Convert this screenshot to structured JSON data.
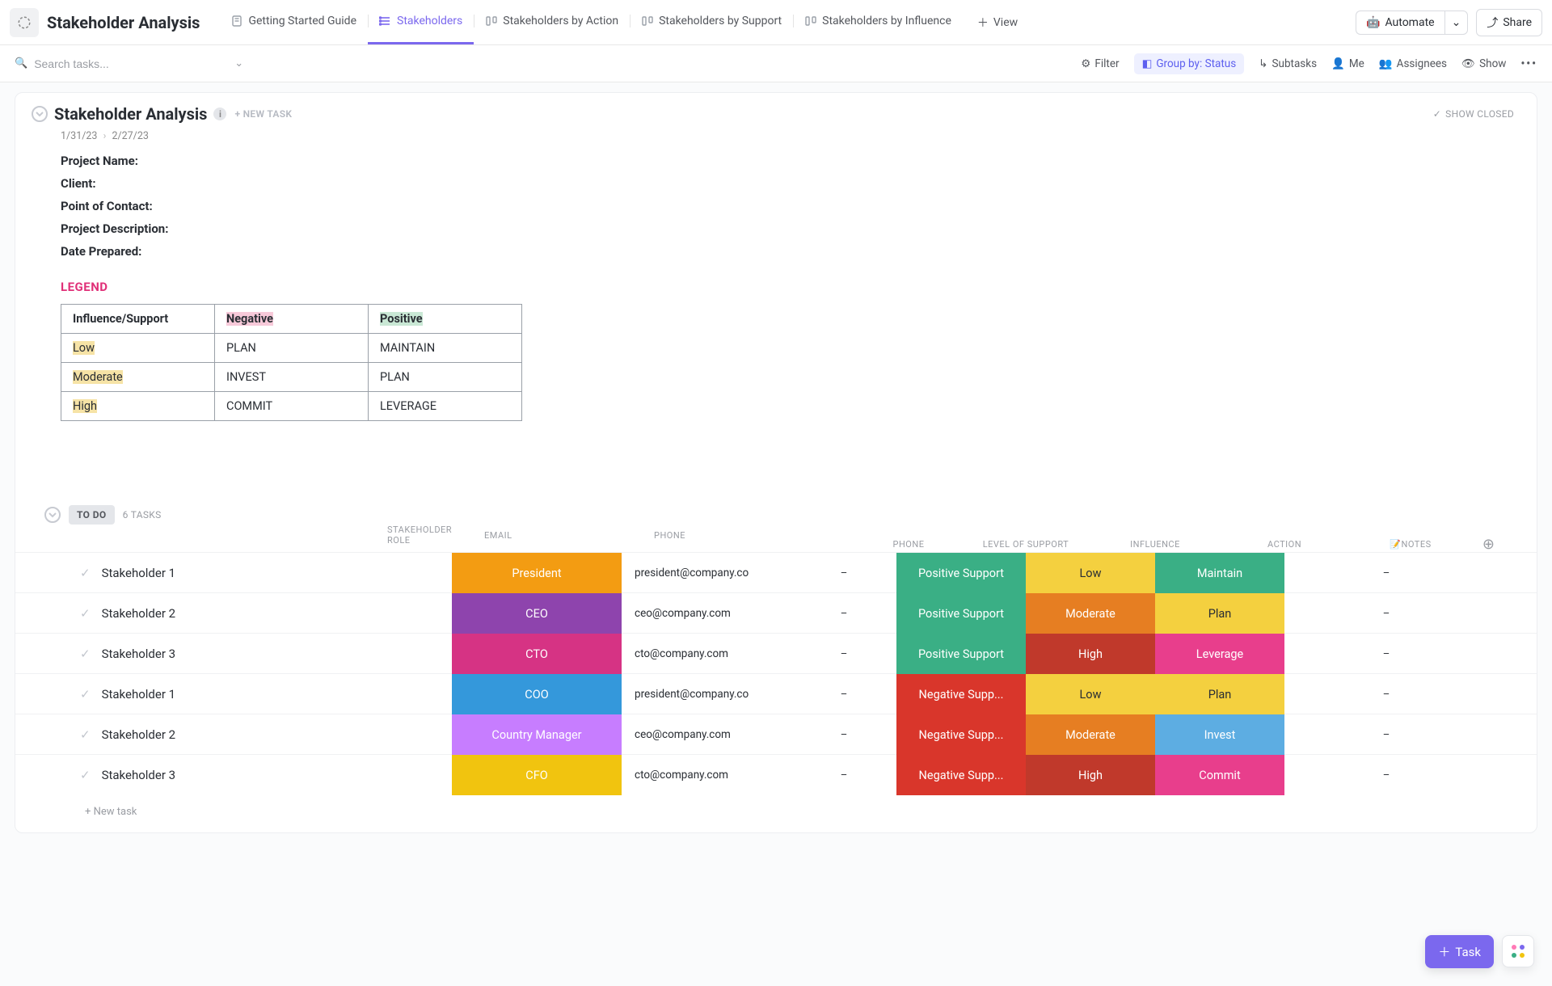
{
  "workspace_title": "Stakeholder Analysis",
  "tabs": [
    {
      "label": "Getting Started Guide",
      "type": "doc"
    },
    {
      "label": "Stakeholders",
      "type": "list",
      "active": true
    },
    {
      "label": "Stakeholders by Action",
      "type": "board"
    },
    {
      "label": "Stakeholders by Support",
      "type": "board"
    },
    {
      "label": "Stakeholders by Influence",
      "type": "board"
    }
  ],
  "add_view_label": "View",
  "automate_label": "Automate",
  "share_label": "Share",
  "search_placeholder": "Search tasks...",
  "util": {
    "filter": "Filter",
    "group_by": "Group by: Status",
    "subtasks": "Subtasks",
    "me": "Me",
    "assignees": "Assignees",
    "show": "Show"
  },
  "card": {
    "title": "Stakeholder Analysis",
    "new_task": "+ NEW TASK",
    "show_closed": "SHOW CLOSED",
    "date_from": "1/31/23",
    "date_to": "2/27/23",
    "fields": [
      "Project Name:",
      "Client:",
      "Point of Contact:",
      "Project Description:",
      "Date Prepared:"
    ],
    "legend_title": "LEGEND",
    "legend": {
      "header": [
        "Influence/Support",
        "Negative",
        "Positive"
      ],
      "rows": [
        {
          "lvl": "Low",
          "neg": "PLAN",
          "pos": "MAINTAIN"
        },
        {
          "lvl": "Moderate",
          "neg": "INVEST",
          "pos": "PLAN"
        },
        {
          "lvl": "High",
          "neg": "COMMIT",
          "pos": "LEVERAGE"
        }
      ],
      "hl_colors": {
        "header_neg": "#f7c9d9",
        "header_pos": "#c9e8d5",
        "lvl": "#f6e3a6"
      }
    }
  },
  "status": {
    "chip": "TO DO",
    "count_label": "6 TASKS"
  },
  "columns": [
    "STAKEHOLDER ROLE",
    "EMAIL",
    "PHONE",
    "LEVEL OF SUPPORT",
    "INFLUENCE",
    "ACTION",
    "📝NOTES"
  ],
  "colors": {
    "role": {
      "President": "#f39c12",
      "CEO": "#8e44ad",
      "CTO": "#d63384",
      "COO": "#3498db",
      "Country Manager": "#c77dff",
      "CFO": "#f1c40f"
    },
    "support": {
      "Positive Support": "#3aaf85",
      "Negative Supp...": "#d9362b"
    },
    "influence": {
      "Low": "#f4d03f",
      "Moderate": "#e67e22",
      "High": "#c0392b"
    },
    "influence_text": {
      "Low": "#2a2e34",
      "Moderate": "#ffffff",
      "High": "#ffffff"
    },
    "action": {
      "Maintain": "#3aaf85",
      "Plan": "#f4d03f",
      "Leverage": "#e83e8c",
      "Invest": "#5dade2",
      "Commit": "#e83e8c"
    },
    "action_text": {
      "Maintain": "#ffffff",
      "Plan": "#2a2e34",
      "Leverage": "#ffffff",
      "Invest": "#ffffff",
      "Commit": "#ffffff"
    }
  },
  "rows": [
    {
      "name": "Stakeholder 1",
      "role": "President",
      "email": "president@company.co",
      "phone": "–",
      "support": "Positive Support",
      "influence": "Low",
      "action": "Maintain",
      "notes": "–"
    },
    {
      "name": "Stakeholder 2",
      "role": "CEO",
      "email": "ceo@company.com",
      "phone": "–",
      "support": "Positive Support",
      "influence": "Moderate",
      "action": "Plan",
      "notes": "–"
    },
    {
      "name": "Stakeholder 3",
      "role": "CTO",
      "email": "cto@company.com",
      "phone": "–",
      "support": "Positive Support",
      "influence": "High",
      "action": "Leverage",
      "notes": "–"
    },
    {
      "name": "Stakeholder 1",
      "role": "COO",
      "email": "president@company.co",
      "phone": "–",
      "support": "Negative Supp...",
      "influence": "Low",
      "action": "Plan",
      "notes": "–"
    },
    {
      "name": "Stakeholder 2",
      "role": "Country Manager",
      "email": "ceo@company.com",
      "phone": "–",
      "support": "Negative Supp...",
      "influence": "Moderate",
      "action": "Invest",
      "notes": "–"
    },
    {
      "name": "Stakeholder 3",
      "role": "CFO",
      "email": "cto@company.com",
      "phone": "–",
      "support": "Negative Supp...",
      "influence": "High",
      "action": "Commit",
      "notes": "–"
    }
  ],
  "new_task_row": "+ New task",
  "fab_task_label": "Task"
}
